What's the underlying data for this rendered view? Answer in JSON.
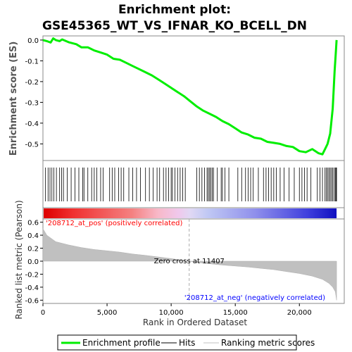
{
  "chart_data": {
    "type": "line",
    "title_line1": "Enrichment plot:",
    "title_line2": "GSE45365_WT_VS_IFNAR_KO_BCELL_DN",
    "es_panel": {
      "ylabel": "Enrichment score (ES)",
      "ylim": [
        -0.58,
        0.02
      ],
      "yticks": [
        0.0,
        -0.1,
        -0.2,
        -0.3,
        -0.4,
        -0.5
      ],
      "ytick_labels": [
        "0.0",
        "-0.1",
        "-0.2",
        "-0.3",
        "-0.4",
        "-0.5"
      ],
      "series_name": "Enrichment profile",
      "color": "#00ee00",
      "points": [
        [
          0,
          0.0
        ],
        [
          300,
          -0.005
        ],
        [
          600,
          -0.012
        ],
        [
          800,
          0.008
        ],
        [
          1000,
          0.0
        ],
        [
          1300,
          -0.005
        ],
        [
          1500,
          0.003
        ],
        [
          2000,
          -0.01
        ],
        [
          2600,
          -0.02
        ],
        [
          3000,
          -0.035
        ],
        [
          3500,
          -0.035
        ],
        [
          4000,
          -0.05
        ],
        [
          4500,
          -0.06
        ],
        [
          5000,
          -0.07
        ],
        [
          5500,
          -0.09
        ],
        [
          6000,
          -0.095
        ],
        [
          6500,
          -0.11
        ],
        [
          7000,
          -0.125
        ],
        [
          7500,
          -0.14
        ],
        [
          8000,
          -0.155
        ],
        [
          8500,
          -0.17
        ],
        [
          9000,
          -0.19
        ],
        [
          9500,
          -0.21
        ],
        [
          10000,
          -0.23
        ],
        [
          10500,
          -0.25
        ],
        [
          11000,
          -0.27
        ],
        [
          11500,
          -0.295
        ],
        [
          12000,
          -0.32
        ],
        [
          12500,
          -0.34
        ],
        [
          13000,
          -0.355
        ],
        [
          13500,
          -0.37
        ],
        [
          14000,
          -0.39
        ],
        [
          14500,
          -0.405
        ],
        [
          15000,
          -0.425
        ],
        [
          15500,
          -0.445
        ],
        [
          16000,
          -0.455
        ],
        [
          16500,
          -0.47
        ],
        [
          17000,
          -0.475
        ],
        [
          17500,
          -0.49
        ],
        [
          18000,
          -0.495
        ],
        [
          18500,
          -0.5
        ],
        [
          19000,
          -0.51
        ],
        [
          19500,
          -0.515
        ],
        [
          20000,
          -0.535
        ],
        [
          20500,
          -0.54
        ],
        [
          21000,
          -0.525
        ],
        [
          21500,
          -0.545
        ],
        [
          21800,
          -0.55
        ],
        [
          22000,
          -0.525
        ],
        [
          22200,
          -0.5
        ],
        [
          22400,
          -0.45
        ],
        [
          22600,
          -0.33
        ],
        [
          22750,
          -0.15
        ],
        [
          22850,
          -0.05
        ],
        [
          22900,
          0.0
        ]
      ]
    },
    "hits_panel": {
      "series_name": "Hits",
      "color": "#000000",
      "positions": [
        200,
        400,
        550,
        700,
        850,
        1050,
        1300,
        1450,
        1600,
        1900,
        2200,
        2500,
        2800,
        3100,
        3200,
        3500,
        3800,
        4000,
        4200,
        4500,
        4700,
        5200,
        5400,
        5600,
        5900,
        6100,
        6300,
        6700,
        7000,
        7300,
        7600,
        8000,
        8300,
        8600,
        8900,
        9100,
        9400,
        9600,
        9800,
        10000,
        10100,
        10300,
        10500,
        10700,
        10900,
        11100,
        12000,
        12200,
        12400,
        12600,
        12800,
        12900,
        13000,
        13100,
        13200,
        13300,
        13600,
        13900,
        14000,
        14200,
        14500,
        15200,
        15500,
        15800,
        16000,
        16200,
        16400,
        16800,
        17200,
        17400,
        17600,
        17800,
        18000,
        18200,
        18500,
        18800,
        19200,
        19600,
        20000,
        20200,
        20400,
        20600,
        20900,
        21400,
        21600,
        21800,
        22000,
        22100,
        22200,
        22300,
        22400,
        22500,
        22600,
        22700,
        22800,
        22850,
        22900
      ]
    },
    "ranked_panel": {
      "ylabel": "Ranked list metric (Pearson)",
      "ylim": [
        -0.65,
        0.65
      ],
      "yticks": [
        0.6,
        0.4,
        0.2,
        0.0,
        -0.2,
        -0.4,
        -0.6
      ],
      "ytick_labels": [
        "0.6",
        "0.4",
        "0.2",
        "0.0",
        "-0.2",
        "-0.4",
        "-0.6"
      ],
      "series_name": "Ranking metric scores",
      "fill_color": "#c0c0c0",
      "points": [
        [
          0,
          0.5
        ],
        [
          300,
          0.4
        ],
        [
          1000,
          0.3
        ],
        [
          2000,
          0.25
        ],
        [
          3000,
          0.21
        ],
        [
          4000,
          0.18
        ],
        [
          5000,
          0.16
        ],
        [
          6000,
          0.14
        ],
        [
          7000,
          0.11
        ],
        [
          8000,
          0.09
        ],
        [
          9000,
          0.065
        ],
        [
          10000,
          0.04
        ],
        [
          11000,
          0.01
        ],
        [
          11407,
          0.0
        ],
        [
          12000,
          -0.02
        ],
        [
          13000,
          -0.04
        ],
        [
          14000,
          -0.06
        ],
        [
          15000,
          -0.075
        ],
        [
          16000,
          -0.09
        ],
        [
          17000,
          -0.11
        ],
        [
          18000,
          -0.13
        ],
        [
          19000,
          -0.16
        ],
        [
          20000,
          -0.19
        ],
        [
          21000,
          -0.23
        ],
        [
          21800,
          -0.28
        ],
        [
          22300,
          -0.34
        ],
        [
          22600,
          -0.4
        ],
        [
          22800,
          -0.47
        ],
        [
          22900,
          -0.6
        ]
      ],
      "zero_cross_rank": 11407,
      "zero_cross_label": "Zero cross at 11407",
      "pos_label": "'208712_at_pos' (positively correlated)",
      "neg_label": "'208712_at_neg' (negatively correlated)",
      "pos_label_color": "#ff0000",
      "neg_label_color": "#0000ff"
    },
    "x_axis": {
      "label": "Rank in Ordered Dataset",
      "xlim": [
        0,
        23500
      ],
      "list_end": 22900,
      "ticks": [
        0,
        5000,
        10000,
        15000,
        20000
      ],
      "tick_labels": [
        "0",
        "5,000",
        "10,000",
        "15,000",
        "20,000"
      ]
    },
    "legend": {
      "placement": "bottom",
      "entries": [
        {
          "label": "Enrichment profile",
          "color": "#00ee00",
          "style": "thick-line"
        },
        {
          "label": "Hits",
          "color": "#808080",
          "style": "line"
        },
        {
          "label": "Ranking metric scores",
          "color": "#e0e0e0",
          "style": "line"
        }
      ]
    }
  }
}
